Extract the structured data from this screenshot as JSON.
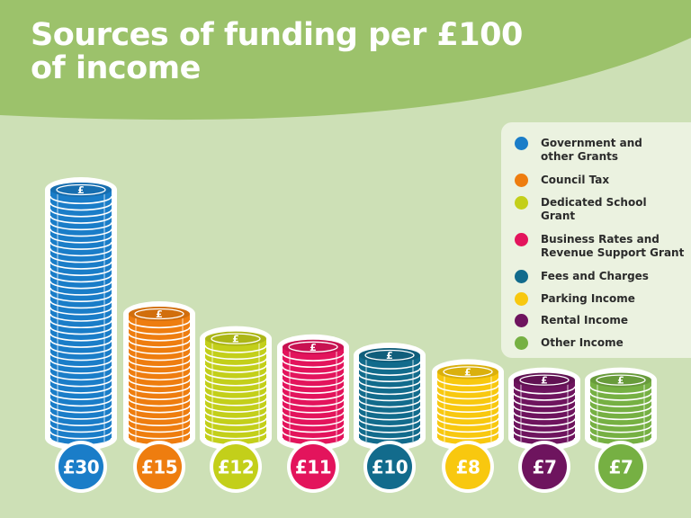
{
  "title": {
    "line1": "Sources of funding per £100",
    "line2": "of income"
  },
  "colors": {
    "header_green": "#9cc26b",
    "background": "#cde0b6",
    "white": "#ffffff"
  },
  "coin_symbol": "£",
  "chart_data": {
    "type": "bar",
    "title": "Sources of funding per £100 of income",
    "categories": [
      "Government and other Grants",
      "Council Tax",
      "Dedicated School Grant",
      "Business Rates and Revenue Support Grant",
      "Fees and Charges",
      "Parking Income",
      "Rental Income",
      "Other Income"
    ],
    "values": [
      30,
      15,
      12,
      11,
      10,
      8,
      7,
      7
    ],
    "data_labels": [
      "£30",
      "£15",
      "£12",
      "£11",
      "£10",
      "£8",
      "£7",
      "£7"
    ],
    "colors": [
      "#1a7dc8",
      "#ee7d0f",
      "#c3cf1a",
      "#e3145c",
      "#126b8c",
      "#f8c80f",
      "#6e145e",
      "#76b043"
    ],
    "legend": {
      "placement": "top-right",
      "entries": [
        "Government and other Grants",
        "Council Tax",
        "Dedicated School Grant",
        "Business Rates and Revenue Support Grant",
        "Fees and Charges",
        "Parking Income",
        "Rental Income",
        "Other Income"
      ],
      "display_lines": [
        [
          "Government and",
          "other Grants"
        ],
        [
          "Council Tax"
        ],
        [
          "Dedicated School",
          "Grant"
        ],
        [
          "Business Rates and",
          "Revenue Support Grant"
        ],
        [
          "Fees and Charges"
        ],
        [
          "Parking Income"
        ],
        [
          "Rental Income"
        ],
        [
          "Other Income"
        ]
      ]
    },
    "xlabel": "",
    "ylabel": "",
    "grid": false
  }
}
